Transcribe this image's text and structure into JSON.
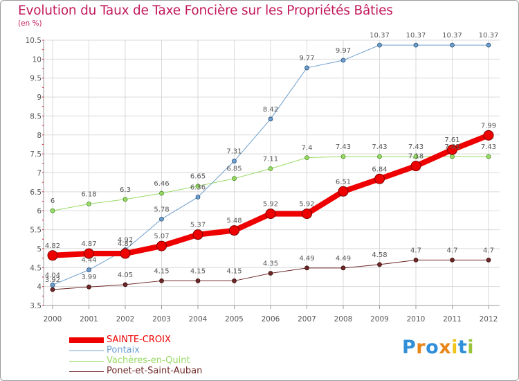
{
  "chart_data": {
    "type": "line",
    "title": "Evolution du Taux de Taxe Foncière sur les Propriétés Bâties",
    "subtitle": "(en %)",
    "xlabel": "",
    "ylabel": "(en %)",
    "ylim": [
      3.5,
      10.5
    ],
    "yticks": [
      "3.5",
      "4",
      "4.5",
      "5",
      "5.5",
      "6",
      "6.5",
      "7",
      "7.5",
      "8",
      "8.5",
      "9",
      "9.5",
      "10",
      "10.5"
    ],
    "grid": true,
    "legend_position": "bottom-left",
    "categories": [
      "2000",
      "2001",
      "2002",
      "2003",
      "2004",
      "2005",
      "2006",
      "2007",
      "2008",
      "2009",
      "2010",
      "2011",
      "2012"
    ],
    "series": [
      {
        "name": "SAINTE-CROIX",
        "color": "#ee0000",
        "values": [
          4.82,
          4.87,
          4.87,
          5.07,
          5.37,
          5.48,
          5.92,
          5.92,
          6.51,
          6.84,
          7.18,
          7.61,
          7.99
        ]
      },
      {
        "name": "Pontaix",
        "color": "#6d9ece",
        "values": [
          4.04,
          4.44,
          4.97,
          5.78,
          6.36,
          7.31,
          8.42,
          9.77,
          9.97,
          10.37,
          10.37,
          10.37,
          10.37
        ]
      },
      {
        "name": "Vachères-en-Quint",
        "color": "#99db66",
        "values": [
          6,
          6.18,
          6.3,
          6.46,
          6.65,
          6.85,
          7.11,
          7.4,
          7.43,
          7.43,
          7.43,
          7.43,
          7.43
        ]
      },
      {
        "name": "Ponet-et-Saint-Auban",
        "color": "#6e2828",
        "values": [
          3.92,
          3.99,
          4.05,
          4.15,
          4.15,
          4.15,
          4.35,
          4.49,
          4.49,
          4.58,
          4.7,
          4.7,
          4.7
        ]
      }
    ]
  },
  "brand": {
    "letters": [
      "P",
      "r",
      "o",
      "x",
      "i",
      "t",
      "i"
    ],
    "colors": [
      "#2f8fd8",
      "#e8861a",
      "#2f8fd8",
      "#e8861a",
      "#f2c419",
      "#2f8fd8",
      "#9ac43a"
    ]
  }
}
